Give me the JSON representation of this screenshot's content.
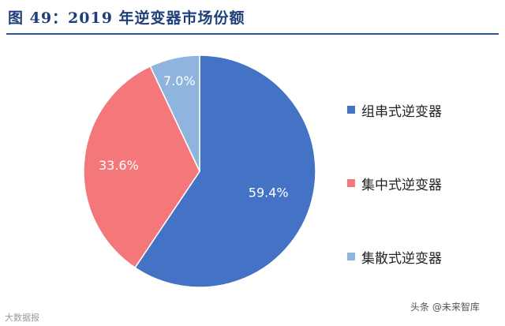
{
  "title": "图 49：2019 年逆变器市场份额",
  "chart_data": {
    "type": "pie",
    "title": "",
    "slices": [
      {
        "name": "组串式逆变器",
        "value": 59.4,
        "label": "59.4%",
        "color": "#4472c4"
      },
      {
        "name": "集中式逆变器",
        "value": 33.6,
        "label": "33.6%",
        "color": "#f4777a"
      },
      {
        "name": "集散式逆变器",
        "value": 7.0,
        "label": "7.0%",
        "color": "#8fb4de"
      }
    ],
    "legend_position": "right"
  },
  "footer": {
    "left": "大数据报",
    "right": "头条 @未来智库"
  }
}
